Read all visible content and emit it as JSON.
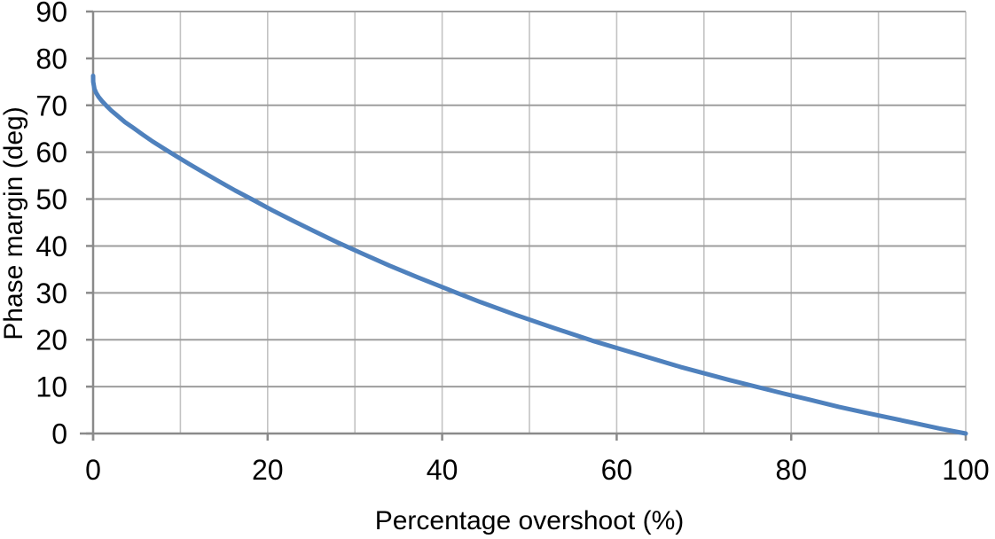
{
  "chart_data": {
    "type": "line",
    "title": "",
    "xlabel": "Percentage overshoot (%)",
    "ylabel": "Phase margin (deg)",
    "xlim": [
      0,
      100
    ],
    "ylim": [
      0,
      90
    ],
    "xtick_values": [
      0,
      20,
      40,
      60,
      80,
      100
    ],
    "xtick_labels": [
      "0",
      "20",
      "40",
      "60",
      "80",
      "100"
    ],
    "ytick_values": [
      0,
      10,
      20,
      30,
      40,
      50,
      60,
      70,
      80,
      90
    ],
    "ytick_labels": [
      "0",
      "10",
      "20",
      "30",
      "40",
      "50",
      "60",
      "70",
      "80",
      "90"
    ],
    "x_grid_step": 10,
    "y_grid_step": 10,
    "grid": "on",
    "legend": "none",
    "series": [
      {
        "color": "#4f81bd",
        "stroke_width": 5,
        "points": [
          [
            0,
            76.3
          ],
          [
            0.01,
            75.0
          ],
          [
            0.15,
            73.5
          ],
          [
            0.34,
            72.7
          ],
          [
            0.63,
            71.8
          ],
          [
            1.02,
            70.9
          ],
          [
            1.52,
            69.9
          ],
          [
            2.12,
            68.8
          ],
          [
            2.84,
            67.7
          ],
          [
            3.66,
            66.4
          ],
          [
            4.6,
            65.2
          ],
          [
            5.65,
            63.8
          ],
          [
            6.81,
            62.3
          ],
          [
            8.08,
            60.8
          ],
          [
            9.48,
            59.2
          ],
          [
            10.99,
            57.5
          ],
          [
            12.63,
            55.7
          ],
          [
            14.41,
            53.8
          ],
          [
            16.3,
            51.8
          ],
          [
            18.35,
            49.8
          ],
          [
            20.53,
            47.6
          ],
          [
            22.88,
            45.4
          ],
          [
            25.38,
            43.1
          ],
          [
            28.06,
            40.7
          ],
          [
            30.92,
            38.3
          ],
          [
            33.97,
            35.8
          ],
          [
            37.23,
            33.3
          ],
          [
            40.71,
            30.7
          ],
          [
            44.43,
            28.0
          ],
          [
            48.42,
            25.3
          ],
          [
            52.66,
            22.6
          ],
          [
            57.21,
            19.8
          ],
          [
            62.09,
            17.1
          ],
          [
            67.31,
            14.2
          ],
          [
            72.92,
            11.4
          ],
          [
            78.96,
            8.6
          ],
          [
            82.14,
            7.2
          ],
          [
            85.45,
            5.7
          ],
          [
            88.88,
            4.3
          ],
          [
            93.91,
            2.3
          ],
          [
            96.91,
            1.1
          ],
          [
            100,
            0
          ]
        ]
      }
    ]
  },
  "style": {
    "background": "#ffffff",
    "text_color": "#000000",
    "axis_color": "#8a8a8a",
    "h_grid_color": "#9d9d9d",
    "v_grid_color": "#c3c3c3",
    "line_color": "#4f81bd"
  }
}
